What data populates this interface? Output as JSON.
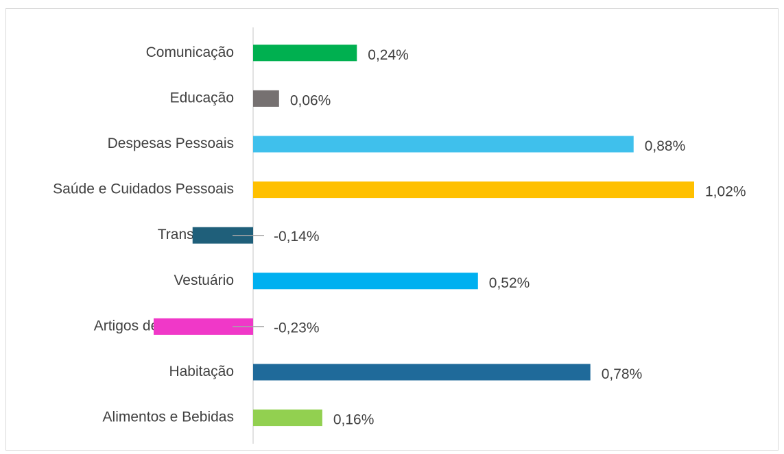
{
  "chart_data": {
    "type": "bar",
    "orientation": "horizontal",
    "categories": [
      "Comunicação",
      "Educação",
      "Despesas Pessoais",
      "Saúde e Cuidados Pessoais",
      "Transportes",
      "Vestuário",
      "Artigos de Residência",
      "Habitação",
      "Alimentos e Bebidas"
    ],
    "values": [
      0.24,
      0.06,
      0.88,
      1.02,
      -0.14,
      0.52,
      -0.23,
      0.78,
      0.16
    ],
    "value_labels": [
      "0,24%",
      "0,06%",
      "0,88%",
      "1,02%",
      "-0,14%",
      "0,52%",
      "-0,23%",
      "0,78%",
      "0,16%"
    ],
    "colors": [
      "#00b050",
      "#767171",
      "#3fc0ec",
      "#ffc000",
      "#1f5f7a",
      "#00b0f0",
      "#f038c8",
      "#1f6a9a",
      "#92d050"
    ]
  }
}
